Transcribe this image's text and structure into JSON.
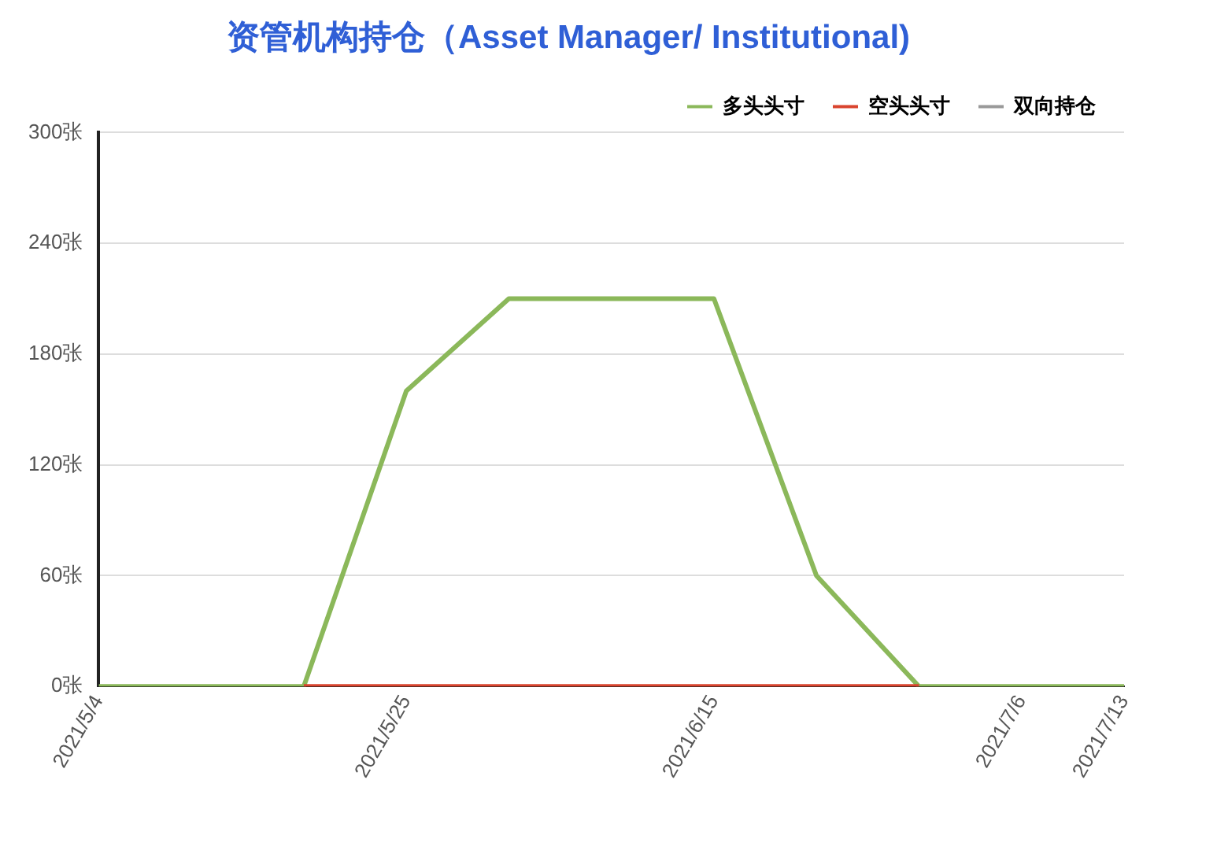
{
  "chart_data": {
    "type": "line",
    "title": "资管机构持仓（Asset Manager/ Institutional)",
    "x": [
      "2021-05-04",
      "2021-05-11",
      "2021-05-18",
      "2021-05-25",
      "2021-06-01",
      "2021-06-08",
      "2021-06-15",
      "2021-06-22",
      "2021-06-29",
      "2021-07-06",
      "2021-07-13"
    ],
    "series": [
      {
        "name": "多头头寸",
        "color": "#8bb85a",
        "values": [
          0,
          0,
          0,
          160,
          210,
          210,
          210,
          60,
          0,
          0,
          0
        ]
      },
      {
        "name": "空头头寸",
        "color": "#d9442e",
        "values": [
          null,
          null,
          0,
          0,
          0,
          0,
          0,
          0,
          0,
          null,
          null
        ]
      },
      {
        "name": "双向持仓",
        "color": "#999999",
        "values": [
          null,
          null,
          null,
          null,
          null,
          null,
          null,
          null,
          null,
          null,
          null
        ]
      }
    ],
    "xlim": [
      "2021-05-04",
      "2021-07-13"
    ],
    "xticks": [
      {
        "value": "2021-05-04",
        "label": "2021/5/4"
      },
      {
        "value": "2021-05-25",
        "label": "2021/5/25"
      },
      {
        "value": "2021-06-15",
        "label": "2021/6/15"
      },
      {
        "value": "2021-07-06",
        "label": "2021/7/6"
      },
      {
        "value": "2021-07-13",
        "label": "2021/7/13"
      }
    ],
    "ylim": [
      0,
      300
    ],
    "yticks": [
      {
        "value": 0,
        "label": "0张"
      },
      {
        "value": 60,
        "label": "60张"
      },
      {
        "value": 120,
        "label": "120张"
      },
      {
        "value": 180,
        "label": "180张"
      },
      {
        "value": 240,
        "label": "240张"
      },
      {
        "value": 300,
        "label": "300张"
      }
    ],
    "grid": "y",
    "legend": "top right",
    "marker": "none",
    "line_style": "solid"
  }
}
